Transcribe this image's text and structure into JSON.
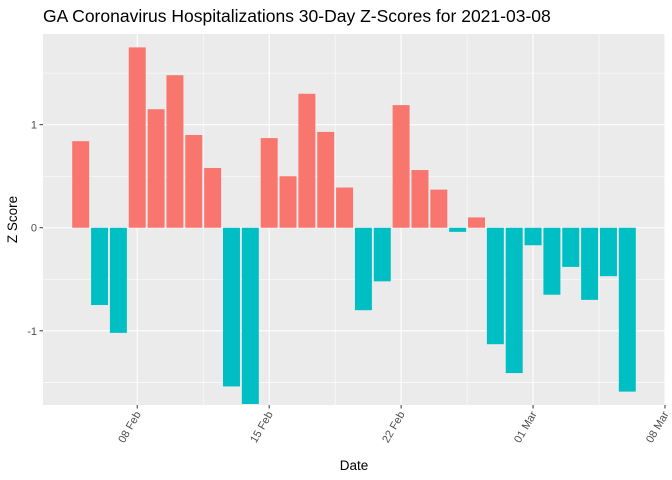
{
  "chart_data": {
    "type": "bar",
    "title": "GA Coronavirus Hospitalizations 30-Day Z-Scores for 2021-03-08",
    "xlabel": "Date",
    "ylabel": "Z Score",
    "grid": true,
    "legend": "none",
    "colors": {
      "positive": "#F8766D",
      "negative": "#00BFC4",
      "panel": "#EBEBEB",
      "grid": "#FFFFFF",
      "tick": "#333333"
    },
    "x": [
      "2021-02-05",
      "2021-02-06",
      "2021-02-07",
      "2021-02-08",
      "2021-02-09",
      "2021-02-10",
      "2021-02-11",
      "2021-02-12",
      "2021-02-13",
      "2021-02-14",
      "2021-02-15",
      "2021-02-16",
      "2021-02-17",
      "2021-02-18",
      "2021-02-19",
      "2021-02-20",
      "2021-02-21",
      "2021-02-22",
      "2021-02-23",
      "2021-02-24",
      "2021-02-25",
      "2021-02-26",
      "2021-02-27",
      "2021-02-28",
      "2021-03-01",
      "2021-03-02",
      "2021-03-03",
      "2021-03-04",
      "2021-03-05",
      "2021-03-06",
      "2021-03-07"
    ],
    "values": [
      0.84,
      -0.75,
      -1.02,
      1.75,
      1.15,
      1.48,
      0.9,
      0.58,
      -1.54,
      -1.71,
      0.87,
      0.5,
      1.3,
      0.93,
      0.39,
      -0.8,
      -0.52,
      1.19,
      0.56,
      0.37,
      -0.04,
      0.1,
      -1.13,
      -1.41,
      -0.17,
      -0.65,
      -0.38,
      -0.7,
      -0.47,
      -1.59,
      0.0
    ],
    "xlim": [
      "2021-02-03",
      "2021-03-08"
    ],
    "ylim": [
      -1.72,
      1.88
    ],
    "x_ticks": [
      {
        "date": "2021-02-08",
        "label": "08 Feb"
      },
      {
        "date": "2021-02-15",
        "label": "15 Feb"
      },
      {
        "date": "2021-02-22",
        "label": "22 Feb"
      },
      {
        "date": "2021-03-01",
        "label": "01 Mar"
      },
      {
        "date": "2021-03-08",
        "label": "08 Mar"
      }
    ],
    "y_ticks": [
      {
        "value": -1,
        "label": "-1"
      },
      {
        "value": 0,
        "label": "0"
      },
      {
        "value": 1,
        "label": "1"
      }
    ]
  }
}
